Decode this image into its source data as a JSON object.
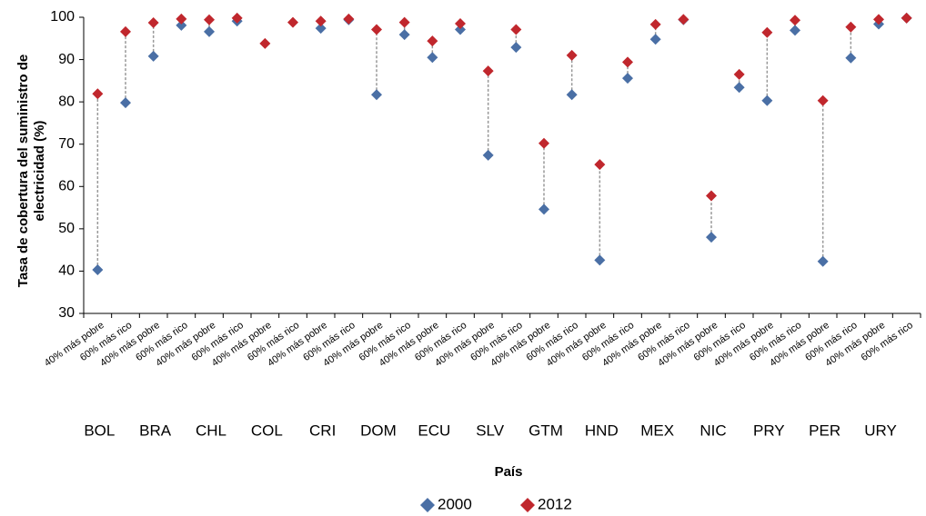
{
  "chart_data": {
    "type": "dotplot",
    "y_label": "Tasa de cobertura del suministro de electricidad (%)",
    "x_label": "País",
    "categories": [
      "40% más pobre",
      "60% más rico",
      "40% más pobre",
      "60% más rico",
      "40% más pobre",
      "60% más rico",
      "40% más pobre",
      "60% más rico",
      "40% más pobre",
      "60% más rico",
      "40% más pobre",
      "60% más rico",
      "40% más pobre",
      "60% más rico",
      "40% más pobre",
      "60% más rico",
      "40% más pobre",
      "60% más rico",
      "40% más pobre",
      "60% más rico",
      "40% más pobre",
      "60% más rico",
      "40% más pobre",
      "60% más rico",
      "40% más pobre",
      "60% más rico",
      "40% más pobre",
      "60% más rico",
      "40% más pobre",
      "60% más rico"
    ],
    "groups": [
      "BOL",
      "BRA",
      "CHL",
      "COL",
      "CRI",
      "DOM",
      "ECU",
      "SLV",
      "GTM",
      "HND",
      "MEX",
      "NIC",
      "PRY",
      "PER",
      "URY"
    ],
    "series": [
      {
        "name": "2000",
        "color": "#4a6fa5",
        "values": [
          40.3,
          79.8,
          90.8,
          98.1,
          96.6,
          99.1,
          null,
          null,
          97.4,
          99.4,
          81.7,
          95.9,
          90.5,
          97.1,
          67.4,
          92.9,
          54.6,
          81.7,
          42.6,
          85.6,
          94.8,
          99.4,
          48.0,
          83.4,
          80.3,
          96.9,
          42.3,
          90.4,
          98.4,
          99.8
        ]
      },
      {
        "name": "2012",
        "color": "#c0272d",
        "values": [
          81.9,
          96.6,
          98.7,
          99.6,
          99.4,
          99.8,
          93.8,
          98.8,
          99.1,
          99.6,
          97.1,
          98.8,
          94.4,
          98.5,
          87.3,
          97.1,
          70.2,
          91.0,
          65.2,
          89.4,
          98.3,
          99.5,
          57.8,
          86.5,
          96.4,
          99.3,
          80.3,
          97.7,
          99.5,
          99.8
        ]
      }
    ],
    "ylim": [
      30,
      100
    ],
    "yticks": [
      30,
      40,
      50,
      60,
      70,
      80,
      90,
      100
    ],
    "connectors": true,
    "legend": "bottom"
  }
}
